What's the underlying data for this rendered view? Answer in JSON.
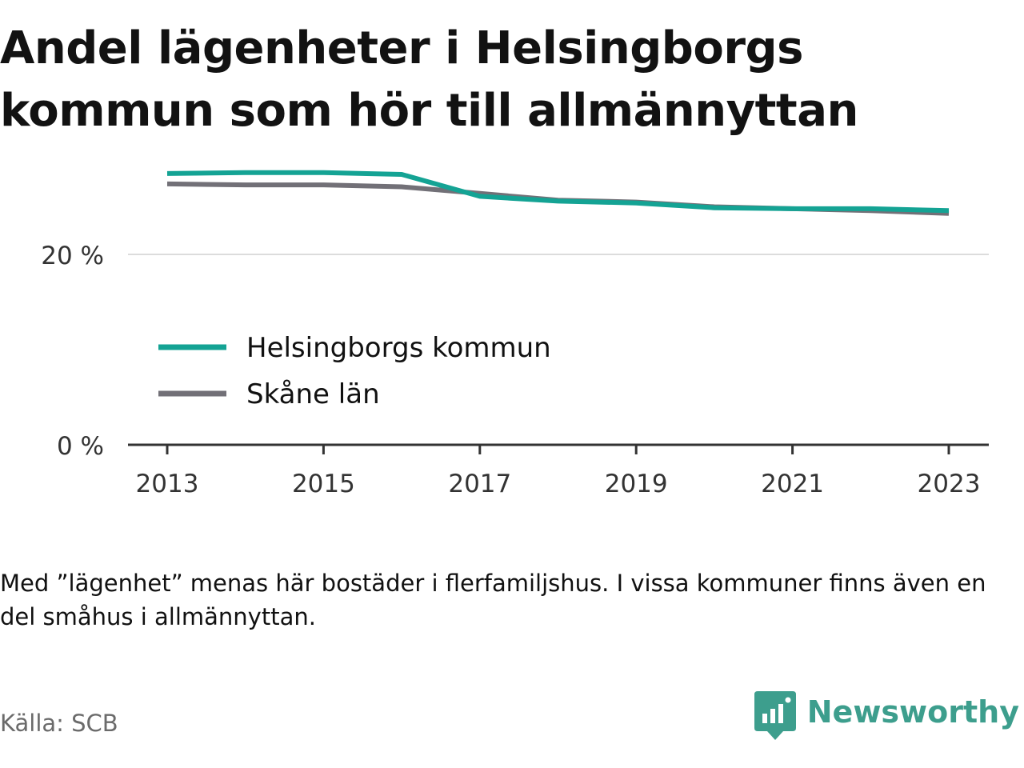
{
  "title": "Andel lägenheter i Helsingborgs kommun som hör till allmännyttan",
  "note": "Med ”lägenhet” menas här bostäder i flerfamiljshus. I vissa kommuner finns även en del småhus i allmännyttan.",
  "source": "Källa: SCB",
  "brand": {
    "name": "Newsworthy",
    "icon": "bar-chart-speech-bubble-icon",
    "color": "#3d9e8d"
  },
  "chart_data": {
    "type": "line",
    "title": "Andel lägenheter i Helsingborgs kommun som hör till allmännyttan",
    "xlabel": "",
    "ylabel": "",
    "x": [
      2013,
      2014,
      2015,
      2016,
      2017,
      2018,
      2019,
      2020,
      2021,
      2022,
      2023
    ],
    "x_ticks": [
      2013,
      2015,
      2017,
      2019,
      2021,
      2023
    ],
    "y_ticks": [
      {
        "value": 0,
        "label": "0 %"
      },
      {
        "value": 20,
        "label": "20 %"
      }
    ],
    "ylim": [
      0,
      30
    ],
    "grid": "horizontal",
    "legend_position": "inside-left",
    "series": [
      {
        "name": "Helsingborgs kommun",
        "color": "#14a394",
        "values": [
          28.5,
          28.6,
          28.6,
          28.4,
          26.1,
          25.6,
          25.4,
          24.9,
          24.8,
          24.8,
          24.6
        ]
      },
      {
        "name": "Skåne län",
        "color": "#727077",
        "values": [
          27.4,
          27.3,
          27.3,
          27.1,
          26.4,
          25.7,
          25.5,
          25.0,
          24.8,
          24.6,
          24.3
        ]
      }
    ]
  }
}
